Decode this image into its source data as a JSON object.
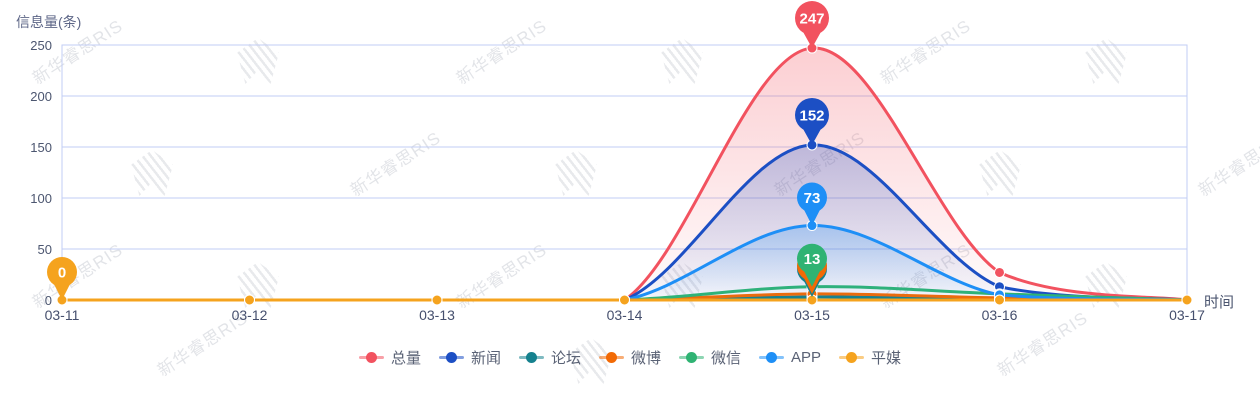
{
  "title": "信息量(条)",
  "x_axis_name": "时间",
  "watermark": "新华睿思RIS",
  "chart_data": {
    "type": "line",
    "title": "信息量(条)",
    "xlabel": "时间",
    "ylabel": "信息量(条)",
    "categories": [
      "03-11",
      "03-12",
      "03-13",
      "03-14",
      "03-15",
      "03-16",
      "03-17"
    ],
    "y_ticks": [
      0,
      50,
      100,
      150,
      200,
      250
    ],
    "ylim": [
      0,
      250
    ],
    "grid": true,
    "smooth": true,
    "legend_position": "bottom",
    "series": [
      {
        "name": "总量",
        "color": "#f2525f",
        "area_fill": true,
        "values": [
          0,
          0,
          0,
          0,
          247,
          27,
          0
        ]
      },
      {
        "name": "新闻",
        "color": "#1c4fc4",
        "area_fill": true,
        "values": [
          0,
          0,
          0,
          0,
          152,
          13,
          0
        ]
      },
      {
        "name": "论坛",
        "color": "#15818e",
        "area_fill": false,
        "values": [
          0,
          0,
          0,
          0,
          3,
          1,
          0
        ]
      },
      {
        "name": "微博",
        "color": "#f26a05",
        "area_fill": false,
        "values": [
          0,
          0,
          0,
          0,
          6,
          2,
          0
        ]
      },
      {
        "name": "微信",
        "color": "#2fb373",
        "area_fill": false,
        "values": [
          0,
          0,
          0,
          0,
          13,
          6,
          0
        ]
      },
      {
        "name": "APP",
        "color": "#1e8ff6",
        "area_fill": true,
        "values": [
          0,
          0,
          0,
          0,
          73,
          5,
          0
        ]
      },
      {
        "name": "平媒",
        "color": "#f5a31e",
        "area_fill": false,
        "values": [
          0,
          0,
          0,
          0,
          0,
          0,
          0
        ]
      }
    ],
    "markers": [
      {
        "series": "平媒",
        "category": "03-11",
        "value": 0,
        "label": "0",
        "color": "#f5a31e"
      },
      {
        "series": "论坛",
        "category": "03-15",
        "value": 3,
        "label": "",
        "color": "#15818e"
      },
      {
        "series": "微博",
        "category": "03-15",
        "value": 6,
        "label": "",
        "color": "#f26a05"
      },
      {
        "series": "微信",
        "category": "03-15",
        "value": 13,
        "label": "13",
        "color": "#2fb373"
      },
      {
        "series": "APP",
        "category": "03-15",
        "value": 73,
        "label": "73",
        "color": "#1e8ff6"
      },
      {
        "series": "新闻",
        "category": "03-15",
        "value": 152,
        "label": "152",
        "color": "#1c4fc4"
      },
      {
        "series": "总量",
        "category": "03-15",
        "value": 247,
        "label": "247",
        "color": "#f2525f"
      }
    ]
  }
}
